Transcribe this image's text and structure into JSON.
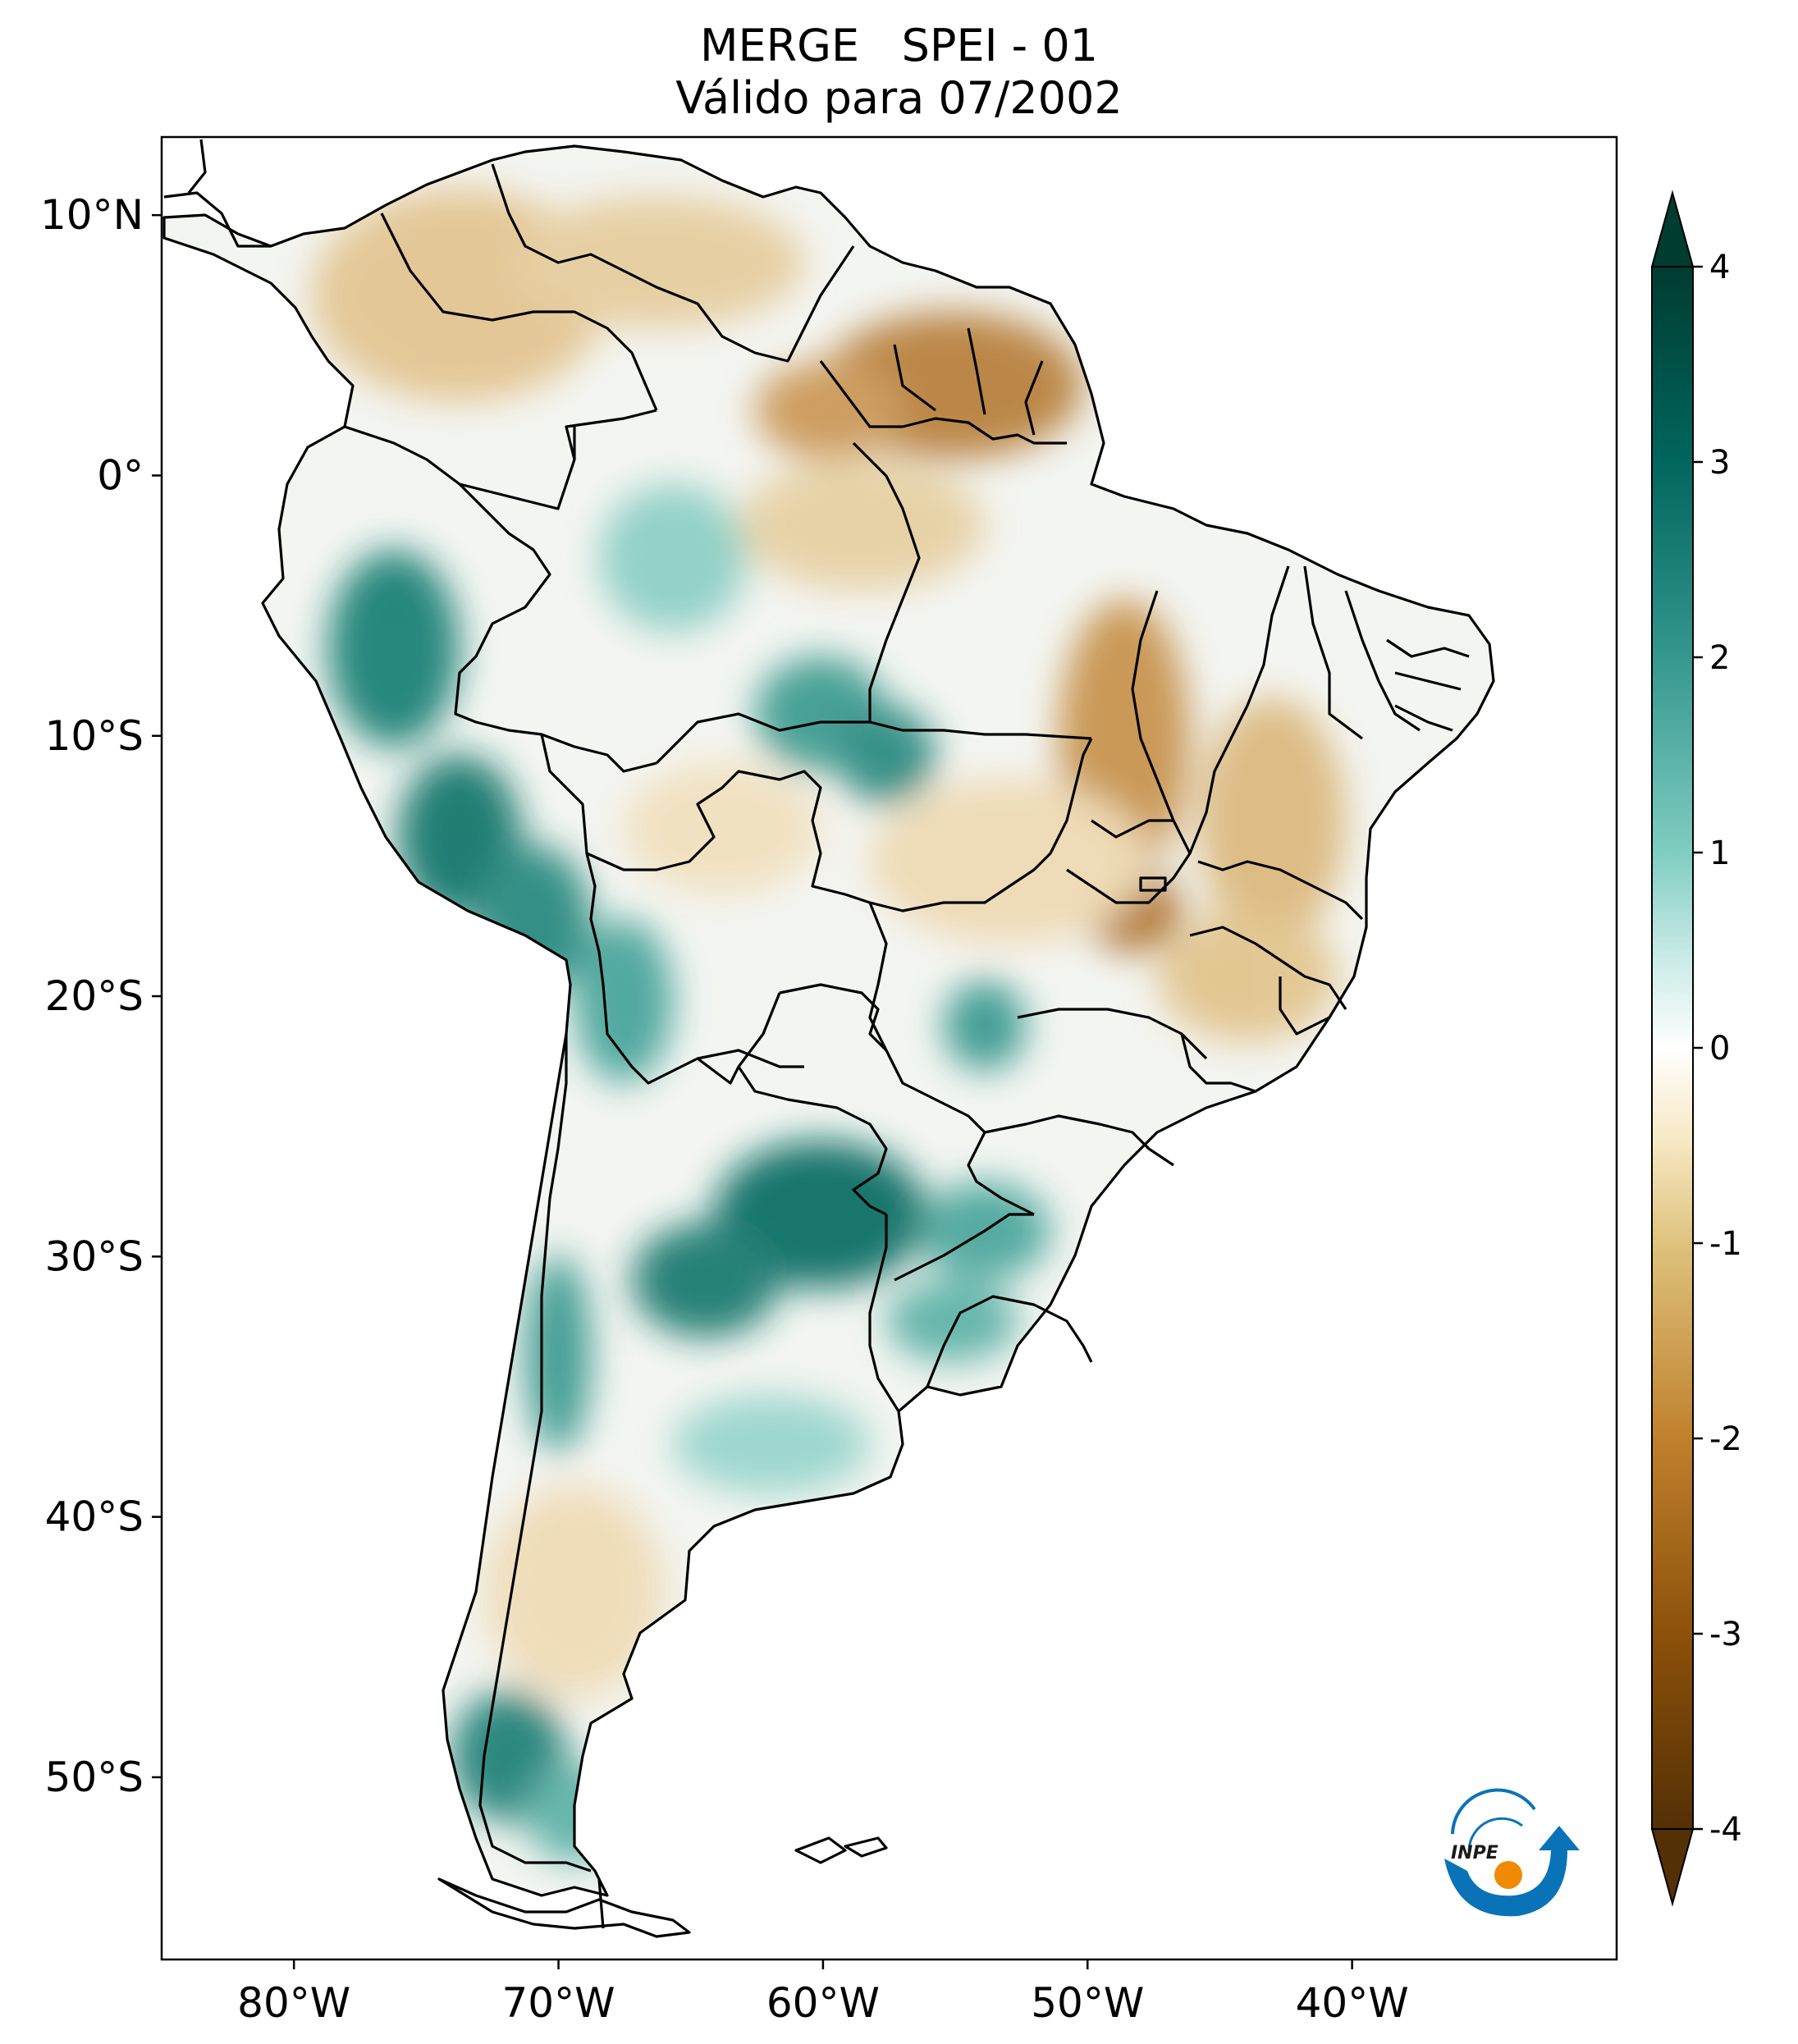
{
  "title": {
    "line1": "MERGE   SPEI - 01",
    "line2": "Válido para 07/2002"
  },
  "map": {
    "region": "South America",
    "lon_range": [
      -85,
      -30
    ],
    "lat_range": [
      -57,
      13
    ],
    "lat_ticks": [
      {
        "value": 10,
        "label": "10°N"
      },
      {
        "value": 0,
        "label": "0°"
      },
      {
        "value": -10,
        "label": "10°S"
      },
      {
        "value": -20,
        "label": "20°S"
      },
      {
        "value": -30,
        "label": "30°S"
      },
      {
        "value": -40,
        "label": "40°S"
      },
      {
        "value": -50,
        "label": "50°S"
      }
    ],
    "lon_ticks": [
      {
        "value": -80,
        "label": "80°W"
      },
      {
        "value": -70,
        "label": "70°W"
      },
      {
        "value": -60,
        "label": "60°W"
      },
      {
        "value": -50,
        "label": "50°W"
      },
      {
        "value": -40,
        "label": "40°W"
      }
    ]
  },
  "colorbar": {
    "range": [
      -4,
      4
    ],
    "ticks": [
      {
        "value": 4,
        "label": "4"
      },
      {
        "value": 3,
        "label": "3"
      },
      {
        "value": 2,
        "label": "2"
      },
      {
        "value": 1,
        "label": "1"
      },
      {
        "value": 0,
        "label": "0"
      },
      {
        "value": -1,
        "label": "-1"
      },
      {
        "value": -2,
        "label": "-2"
      },
      {
        "value": -3,
        "label": "-3"
      },
      {
        "value": -4,
        "label": "-4"
      }
    ],
    "colors": {
      "dry_extreme": "#543005",
      "dry_strong": "#8c510a",
      "dry_moderate": "#bf812d",
      "dry_mild": "#dfc27d",
      "dry_slight": "#f6e8c3",
      "neutral": "#ffffff",
      "wet_slight": "#c7eae5",
      "wet_mild": "#80cdc1",
      "wet_moderate": "#35978f",
      "wet_strong": "#01665e",
      "wet_extreme": "#003c30"
    }
  },
  "logo": {
    "text": "INPE",
    "arrow_color": "#0a73b8",
    "dot_color": "#f08a00"
  }
}
